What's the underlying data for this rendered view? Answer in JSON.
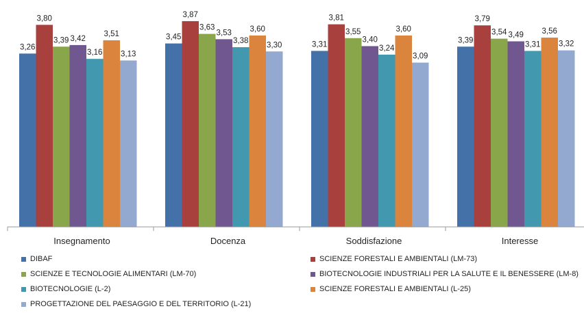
{
  "chart_data": {
    "type": "bar",
    "categories": [
      "Insegnamento",
      "Docenza",
      "Soddisfazione",
      "Interesse"
    ],
    "series": [
      {
        "name": "DIBAF",
        "color": "#4472A8",
        "values": [
          3.26,
          3.45,
          3.31,
          3.39
        ],
        "labels": [
          "3,26",
          "3,45",
          "3,31",
          "3,39"
        ]
      },
      {
        "name": "SCIENZE FORESTALI E AMBIENTALI (LM-73)",
        "color": "#A8403D",
        "values": [
          3.8,
          3.87,
          3.81,
          3.79
        ],
        "labels": [
          "3,80",
          "3,87",
          "3,81",
          "3,79"
        ]
      },
      {
        "name": "SCIENZE E TECNOLOGIE ALIMENTARI (LM-70)",
        "color": "#89A64A",
        "values": [
          3.39,
          3.63,
          3.55,
          3.54
        ],
        "labels": [
          "3,39",
          "3,63",
          "3,55",
          "3,54"
        ]
      },
      {
        "name": "BIOTECNOLOGIE INDUSTRIALI PER LA SALUTE E IL BENESSERE (LM-8)",
        "color": "#71578F",
        "values": [
          3.42,
          3.53,
          3.4,
          3.49
        ],
        "labels": [
          "3,42",
          "3,53",
          "3,40",
          "3,49"
        ]
      },
      {
        "name": "BIOTECNOLOGIE (L-2)",
        "color": "#4198AF",
        "values": [
          3.16,
          3.38,
          3.24,
          3.31
        ],
        "labels": [
          "3,16",
          "3,38",
          "3,24",
          "3,31"
        ]
      },
      {
        "name": "SCIENZE FORESTALI E AMBIENTALI (L-25)",
        "color": "#DB843D",
        "values": [
          3.51,
          3.6,
          3.6,
          3.56
        ],
        "labels": [
          "3,51",
          "3,60",
          "3,60",
          "3,56"
        ]
      },
      {
        "name": "PROGETTAZIONE DEL PAESAGGIO E DEL TERRITORIO  (L-21)",
        "color": "#93A9CF",
        "values": [
          3.13,
          3.3,
          3.09,
          3.32
        ],
        "labels": [
          "3,13",
          "3,30",
          "3,09",
          "3,32"
        ]
      }
    ],
    "ylim": [
      0,
      4
    ],
    "grid": false,
    "legend_position": "bottom",
    "xlabel": "",
    "ylabel": ""
  }
}
